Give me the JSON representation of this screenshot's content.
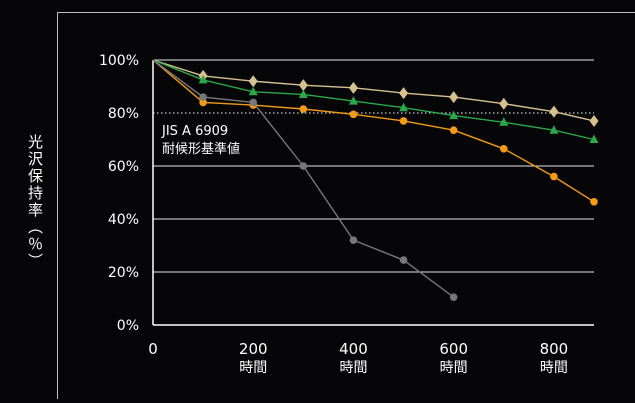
{
  "chart_data": {
    "type": "line",
    "ylabel": "光沢保持率（％）",
    "ylim": [
      0,
      100
    ],
    "xlim": [
      0,
      880
    ],
    "y_ticks": [
      {
        "value": 0,
        "label": "0%"
      },
      {
        "value": 20,
        "label": "20%"
      },
      {
        "value": 40,
        "label": "40%"
      },
      {
        "value": 60,
        "label": "60%"
      },
      {
        "value": 80,
        "label": "80%"
      },
      {
        "value": 100,
        "label": "100%"
      }
    ],
    "x_ticks": [
      {
        "value": 0,
        "label": "0",
        "unit": ""
      },
      {
        "value": 200,
        "label": "200",
        "unit": "時間"
      },
      {
        "value": 400,
        "label": "400",
        "unit": "時間"
      },
      {
        "value": 600,
        "label": "600",
        "unit": "時間"
      },
      {
        "value": 800,
        "label": "800",
        "unit": "時間"
      }
    ],
    "grid": true,
    "reference_line": {
      "value": 80,
      "label_line1": "JIS A 6909",
      "label_line2": "耐候形基準値",
      "color": "#cccccc"
    },
    "series": [
      {
        "color": "#d8c190",
        "marker": "diamond",
        "x": [
          0,
          100,
          200,
          300,
          400,
          500,
          600,
          700,
          800,
          880
        ],
        "values": [
          100,
          94,
          92,
          90.5,
          89.5,
          87.5,
          86,
          83.5,
          80.5,
          77
        ]
      },
      {
        "color": "#2aa84a",
        "marker": "triangle",
        "x": [
          0,
          100,
          200,
          300,
          400,
          500,
          600,
          700,
          800,
          880
        ],
        "values": [
          100,
          92.5,
          88,
          87,
          84.5,
          82,
          79,
          76.5,
          73.5,
          70
        ]
      },
      {
        "color": "#f39b16",
        "marker": "circle",
        "x": [
          0,
          100,
          200,
          300,
          400,
          500,
          600,
          700,
          800,
          880
        ],
        "values": [
          100,
          84,
          83,
          81.5,
          79.5,
          77,
          73.5,
          66.5,
          56,
          46.5
        ]
      },
      {
        "color": "#777777",
        "marker": "circle",
        "x": [
          0,
          100,
          200,
          300,
          400,
          500,
          600
        ],
        "values": [
          100,
          86,
          84,
          60,
          32,
          24.5,
          10.5
        ]
      }
    ]
  }
}
